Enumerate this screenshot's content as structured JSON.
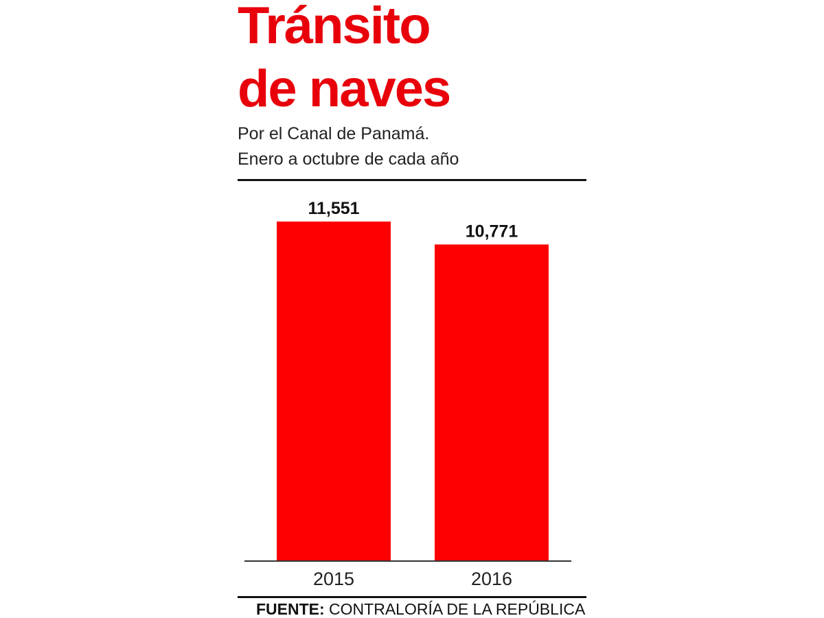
{
  "header": {
    "title_line1": "Tránsito",
    "title_line2": "de naves",
    "subtitle_line1": "Por el Canal de Panamá.",
    "subtitle_line2": "Enero a octubre de cada año"
  },
  "footer": {
    "source_label": "FUENTE:",
    "source_text": " CONTRALORÍA DE LA REPÚBLICA"
  },
  "colors": {
    "accent": "#e8000b",
    "bar": "#ff0000",
    "text": "#111111"
  },
  "chart_data": {
    "type": "bar",
    "categories": [
      "2015",
      "2016"
    ],
    "values": [
      11551,
      10771
    ],
    "value_labels": [
      "11,551",
      "10,771"
    ],
    "title": "Tránsito de naves",
    "subtitle": "Por el Canal de Panamá. Enero a octubre de cada año",
    "xlabel": "",
    "ylabel": "",
    "ylim": [
      0,
      11551
    ],
    "grid": false,
    "legend": "none"
  }
}
